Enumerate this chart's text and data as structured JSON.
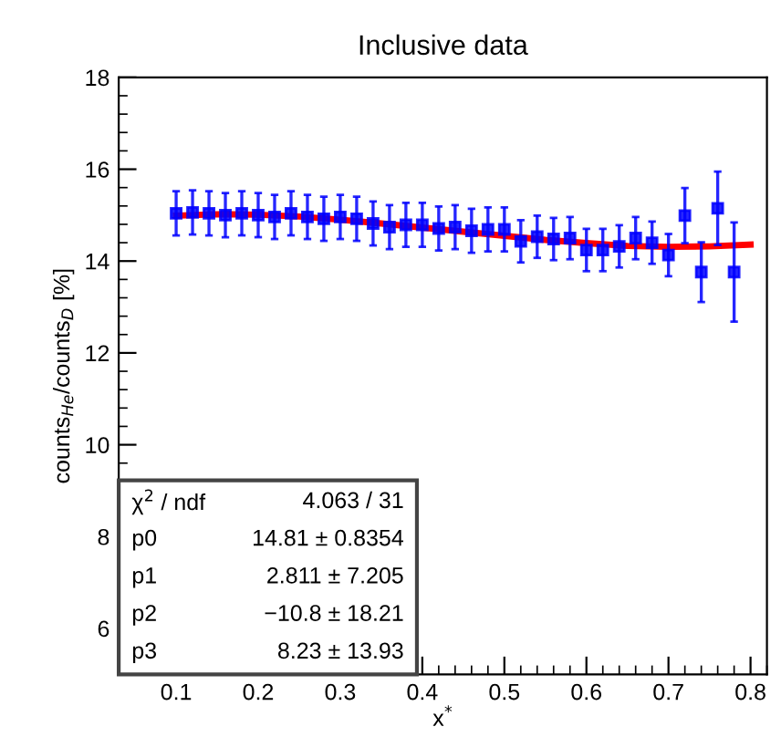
{
  "chart_data": {
    "type": "scatter",
    "title": "Inclusive data",
    "xlabel": "x$^{*}$",
    "ylabel": "counts$_{He}$/counts$_{D}$ [%]",
    "xlim": [
      0.03,
      0.82
    ],
    "ylim": [
      5,
      18
    ],
    "xticks": [
      0.1,
      0.2,
      0.3,
      0.4,
      0.5,
      0.6,
      0.7,
      0.8
    ],
    "yticks": [
      6,
      8,
      10,
      12,
      14,
      16,
      18
    ],
    "marker": "square",
    "grid": false,
    "legend": false,
    "series": [
      {
        "color": "#0000ff",
        "x": [
          0.1,
          0.12,
          0.14,
          0.16,
          0.18,
          0.2,
          0.22,
          0.24,
          0.26,
          0.28,
          0.3,
          0.32,
          0.34,
          0.36,
          0.38,
          0.4,
          0.42,
          0.44,
          0.46,
          0.48,
          0.5,
          0.52,
          0.54,
          0.56,
          0.58,
          0.6,
          0.62,
          0.64,
          0.66,
          0.68,
          0.7,
          0.72,
          0.74,
          0.76,
          0.78
        ],
        "values": [
          15.04,
          15.06,
          15.04,
          15.0,
          15.04,
          15.0,
          14.96,
          15.04,
          14.96,
          14.92,
          14.96,
          14.92,
          14.82,
          14.74,
          14.79,
          14.79,
          14.71,
          14.74,
          14.66,
          14.69,
          14.69,
          14.43,
          14.53,
          14.48,
          14.5,
          14.24,
          14.24,
          14.32,
          14.5,
          14.4,
          14.13,
          14.99,
          13.76,
          15.15,
          13.76
        ],
        "errors": [
          0.48,
          0.48,
          0.48,
          0.48,
          0.48,
          0.48,
          0.48,
          0.48,
          0.48,
          0.48,
          0.48,
          0.48,
          0.48,
          0.48,
          0.48,
          0.48,
          0.48,
          0.48,
          0.48,
          0.48,
          0.48,
          0.46,
          0.46,
          0.46,
          0.46,
          0.46,
          0.46,
          0.46,
          0.46,
          0.46,
          0.46,
          0.6,
          0.65,
          0.8,
          1.08
        ]
      },
      {
        "type": "line",
        "color": "#ff0000",
        "marker": "none",
        "x": [
          0.1,
          0.15,
          0.2,
          0.25,
          0.3,
          0.35,
          0.4,
          0.45,
          0.5,
          0.55,
          0.6,
          0.65,
          0.7,
          0.75,
          0.8
        ],
        "values": [
          14.99,
          15.02,
          15.01,
          14.97,
          14.9,
          14.82,
          14.73,
          14.64,
          14.55,
          14.46,
          14.39,
          14.33,
          14.31,
          14.32,
          14.36
        ]
      }
    ],
    "annotations": [
      "χ$^{2}$ / ndf",
      "4.063 / 31",
      "p0",
      "14.81 ± 0.8354",
      "p1",
      "2.811 ± 7.205",
      "p2",
      "−10.8 ± 18.21",
      "p3",
      "8.23 ± 13.93"
    ]
  }
}
